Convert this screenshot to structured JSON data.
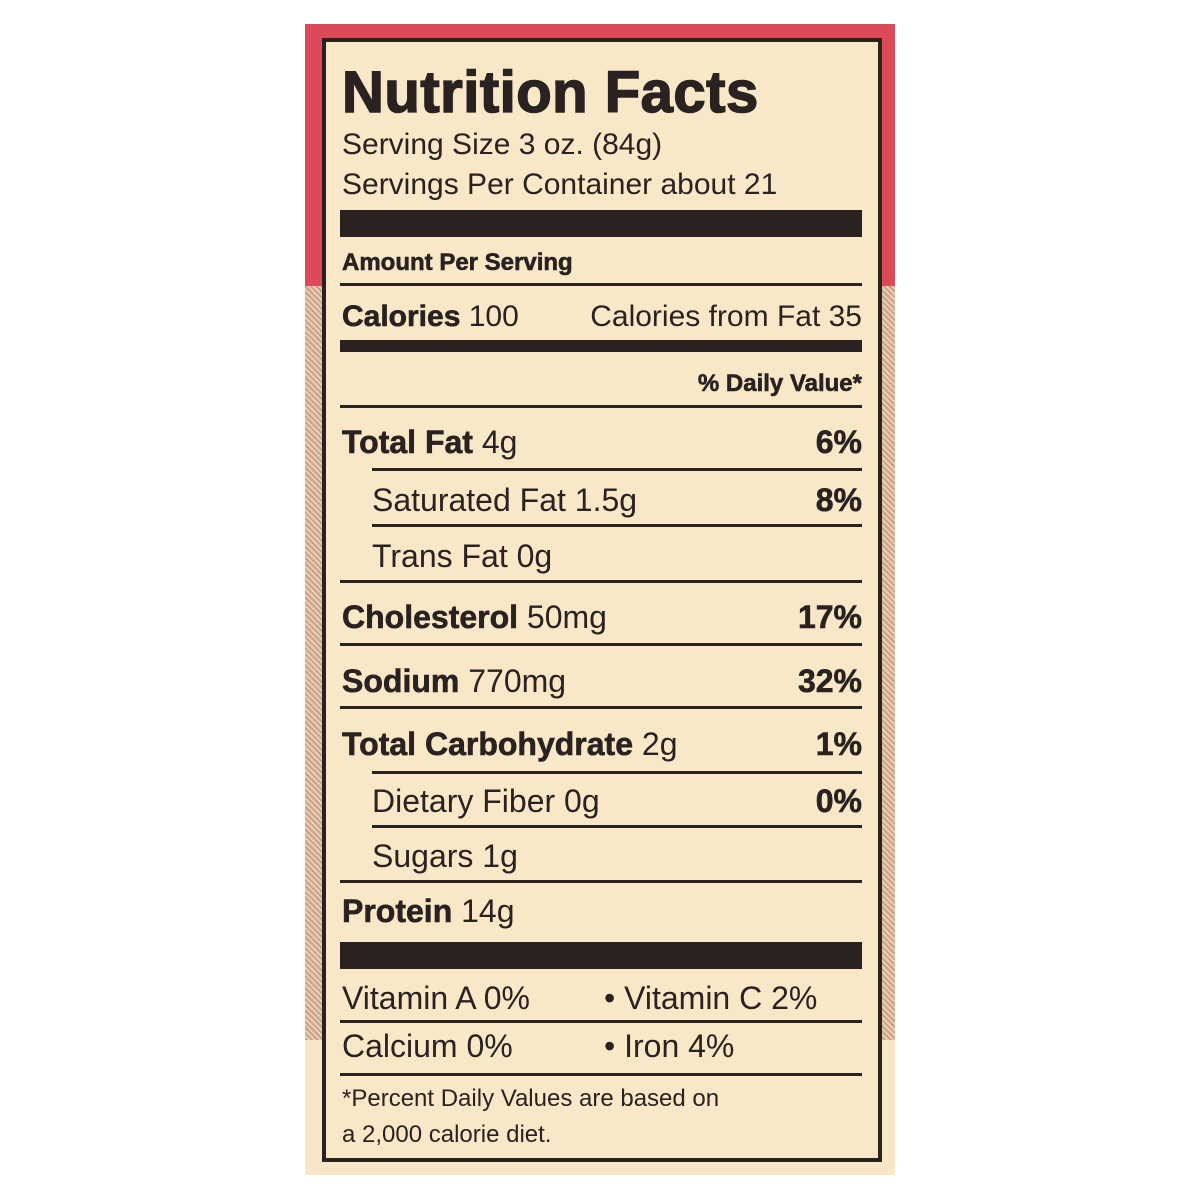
{
  "title": "Nutrition Facts",
  "serving_size": "Serving Size 3 oz. (84g)",
  "servings_per_container": "Servings Per Container about 21",
  "amount_per_serving": "Amount Per Serving",
  "calories": {
    "label": "Calories",
    "value": "100",
    "from_fat": "Calories from Fat 35"
  },
  "daily_value_header": "% Daily Value*",
  "nutrients": [
    {
      "label": "Total Fat",
      "amount": "4g",
      "dv": "6%"
    },
    {
      "label": "Saturated Fat",
      "amount": "1.5g",
      "dv": "8%"
    },
    {
      "label": "Trans Fat",
      "amount": "0g",
      "dv": ""
    },
    {
      "label": "Cholesterol",
      "amount": "50mg",
      "dv": "17%"
    },
    {
      "label": "Sodium",
      "amount": "770mg",
      "dv": "32%"
    },
    {
      "label": "Total Carbohydrate",
      "amount": "2g",
      "dv": "1%"
    },
    {
      "label": "Dietary Fiber",
      "amount": "0g",
      "dv": "0%"
    },
    {
      "label": "Sugars",
      "amount": "1g",
      "dv": ""
    },
    {
      "label": "Protein",
      "amount": "14g",
      "dv": ""
    }
  ],
  "vitamins": {
    "vitamin_a": "Vitamin A 0%",
    "vitamin_c": "• Vitamin C 2%",
    "calcium": "Calcium 0%",
    "iron": "• Iron 4%"
  },
  "footnote": [
    "*Percent Daily Values are based on",
    "a 2,000 calorie diet."
  ],
  "colors": {
    "package_red": "#dc4a58",
    "label_cream": "#f9e8c8",
    "ink": "#2a2220"
  }
}
